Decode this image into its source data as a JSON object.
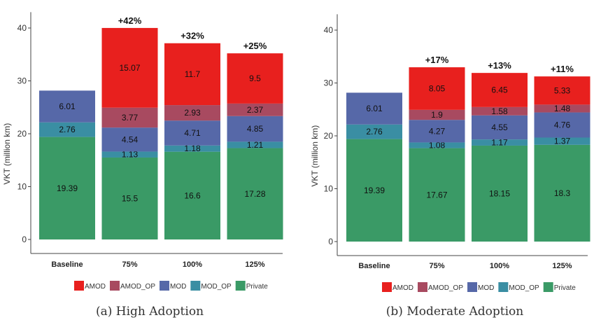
{
  "chart_data": [
    {
      "type": "bar",
      "stacked": true,
      "caption": "(a) High Adoption",
      "ylabel": "VKT (million km)",
      "xlabel": "",
      "ylim": [
        0,
        43
      ],
      "yticks": [
        0,
        10,
        20,
        30,
        40
      ],
      "grid": false,
      "legend_position": "bottom",
      "categories": [
        "Baseline",
        "75%",
        "100%",
        "125%"
      ],
      "increase_labels": [
        "",
        "+42%",
        "+32%",
        "+25%"
      ],
      "series": [
        {
          "name": "Private",
          "color": "#3a9a66",
          "values": [
            19.39,
            15.5,
            16.6,
            17.28
          ]
        },
        {
          "name": "MOD_OP",
          "color": "#3a8ea3",
          "values": [
            2.76,
            1.13,
            1.18,
            1.21
          ]
        },
        {
          "name": "MOD",
          "color": "#5668a8",
          "values": [
            6.01,
            4.54,
            4.71,
            4.85
          ]
        },
        {
          "name": "AMOD_OP",
          "color": "#a84a60",
          "values": [
            0,
            3.77,
            2.93,
            2.37
          ]
        },
        {
          "name": "AMOD",
          "color": "#e8201e",
          "values": [
            0,
            15.07,
            11.7,
            9.5
          ]
        }
      ]
    },
    {
      "type": "bar",
      "stacked": true,
      "caption": "(b) Moderate Adoption",
      "ylabel": "VKT (million km)",
      "xlabel": "",
      "ylim": [
        0,
        43
      ],
      "yticks": [
        0,
        10,
        20,
        30,
        40
      ],
      "grid": false,
      "legend_position": "bottom",
      "categories": [
        "Baseline",
        "75%",
        "100%",
        "125%"
      ],
      "increase_labels": [
        "",
        "+17%",
        "+13%",
        "+11%"
      ],
      "series": [
        {
          "name": "Private",
          "color": "#3a9a66",
          "values": [
            19.39,
            17.67,
            18.15,
            18.3
          ]
        },
        {
          "name": "MOD_OP",
          "color": "#3a8ea3",
          "values": [
            2.76,
            1.08,
            1.17,
            1.37
          ]
        },
        {
          "name": "MOD",
          "color": "#5668a8",
          "values": [
            6.01,
            4.27,
            4.55,
            4.76
          ]
        },
        {
          "name": "AMOD_OP",
          "color": "#a84a60",
          "values": [
            0,
            1.9,
            1.58,
            1.48
          ]
        },
        {
          "name": "AMOD",
          "color": "#e8201e",
          "values": [
            0,
            8.05,
            6.45,
            5.33
          ]
        }
      ]
    }
  ],
  "legend_order": [
    "AMOD",
    "AMOD_OP",
    "MOD",
    "MOD_OP",
    "Private"
  ]
}
